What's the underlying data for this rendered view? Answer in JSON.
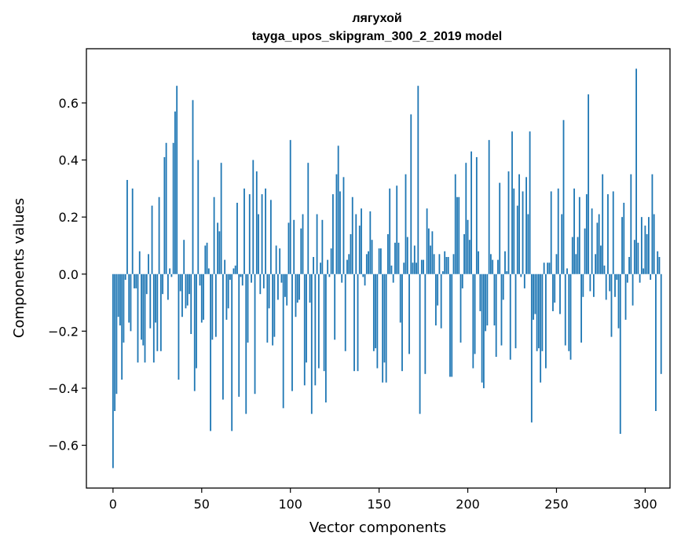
{
  "chart_data": {
    "type": "bar",
    "title": "лягухой",
    "subtitle": "tayga_upos_skipgram_300_2_2019 model",
    "xlabel": "Vector components",
    "ylabel": "Components values",
    "xlim": [
      -15,
      314
    ],
    "ylim": [
      -0.75,
      0.79
    ],
    "xticks": [
      0,
      50,
      100,
      150,
      200,
      250,
      300
    ],
    "yticks": [
      -0.6,
      -0.4,
      -0.2,
      0.0,
      0.2,
      0.4,
      0.6
    ],
    "ytick_labels": [
      "−0.6",
      "−0.4",
      "−0.2",
      "0.0",
      "0.2",
      "0.4",
      "0.6"
    ],
    "bar_color": "#1f77b4",
    "grid": false,
    "values": [
      -0.68,
      -0.48,
      -0.42,
      -0.15,
      -0.18,
      -0.37,
      -0.24,
      -0.02,
      0.33,
      -0.17,
      -0.2,
      0.3,
      -0.05,
      -0.05,
      -0.31,
      0.08,
      -0.23,
      -0.25,
      -0.31,
      -0.07,
      0.07,
      -0.19,
      0.24,
      -0.31,
      -0.17,
      -0.27,
      0.27,
      -0.27,
      -0.07,
      0.41,
      0.46,
      -0.09,
      0.02,
      -0.01,
      0.46,
      0.57,
      0.66,
      -0.37,
      -0.06,
      -0.15,
      0.12,
      -0.12,
      -0.11,
      -0.07,
      -0.21,
      0.61,
      -0.41,
      -0.33,
      0.4,
      -0.04,
      -0.17,
      -0.16,
      0.1,
      0.11,
      0.02,
      -0.55,
      -0.23,
      0.27,
      -0.22,
      0.18,
      0.15,
      0.39,
      -0.44,
      0.05,
      -0.16,
      -0.12,
      -0.02,
      -0.55,
      0.02,
      0.03,
      0.25,
      -0.43,
      -0.01,
      -0.04,
      0.3,
      -0.49,
      -0.24,
      0.28,
      -0.03,
      0.4,
      -0.42,
      0.36,
      0.21,
      -0.07,
      0.28,
      -0.05,
      0.3,
      -0.24,
      -0.12,
      0.26,
      -0.25,
      -0.22,
      0.1,
      -0.09,
      0.09,
      -0.03,
      -0.47,
      -0.08,
      -0.11,
      0.18,
      0.47,
      -0.41,
      0.19,
      -0.15,
      -0.1,
      -0.09,
      0.16,
      0.21,
      -0.39,
      -0.31,
      0.39,
      -0.1,
      -0.49,
      0.06,
      -0.39,
      0.21,
      -0.33,
      0.04,
      0.19,
      -0.34,
      -0.45,
      0.05,
      -0.01,
      0.09,
      0.28,
      -0.23,
      0.35,
      0.45,
      0.29,
      -0.03,
      0.34,
      -0.27,
      0.05,
      0.07,
      0.14,
      0.27,
      -0.34,
      0.21,
      -0.34,
      0.17,
      0.23,
      -0.01,
      -0.04,
      0.07,
      0.08,
      0.22,
      0.12,
      -0.27,
      -0.26,
      -0.33,
      0.09,
      0.09,
      -0.38,
      -0.31,
      -0.38,
      0.14,
      0.3,
      0.03,
      -0.03,
      0.11,
      0.31,
      0.11,
      -0.17,
      -0.34,
      0.04,
      0.35,
      0.13,
      -0.28,
      0.56,
      0.04,
      0.1,
      0.04,
      0.66,
      -0.49,
      0.05,
      0.05,
      -0.35,
      0.23,
      0.16,
      0.1,
      0.15,
      0.07,
      -0.18,
      -0.11,
      0.07,
      -0.19,
      0.01,
      0.08,
      0.06,
      0.06,
      -0.36,
      -0.36,
      0.07,
      0.35,
      0.27,
      0.27,
      -0.24,
      -0.05,
      0.14,
      0.39,
      0.19,
      0.12,
      0.43,
      -0.33,
      -0.28,
      0.41,
      0.08,
      -0.13,
      -0.38,
      -0.4,
      -0.2,
      -0.18,
      0.47,
      0.07,
      0.05,
      -0.18,
      -0.29,
      0.05,
      0.32,
      -0.25,
      -0.09,
      0.08,
      0.01,
      0.36,
      -0.3,
      0.5,
      0.3,
      -0.26,
      0.24,
      0.35,
      -0.01,
      0.29,
      -0.05,
      0.34,
      0.21,
      0.5,
      -0.52,
      -0.16,
      -0.14,
      -0.27,
      -0.26,
      -0.38,
      -0.27,
      0.04,
      -0.33,
      0.04,
      0.04,
      0.29,
      -0.13,
      -0.1,
      0.07,
      0.3,
      -0.14,
      0.21,
      0.54,
      -0.25,
      0.02,
      -0.27,
      -0.3,
      0.13,
      0.3,
      0.07,
      0.13,
      0.27,
      -0.24,
      -0.08,
      0.16,
      0.28,
      0.63,
      -0.06,
      0.23,
      -0.08,
      0.07,
      0.18,
      0.21,
      0.1,
      0.35,
      0.03,
      -0.09,
      0.28,
      -0.06,
      -0.22,
      0.29,
      -0.08,
      -0.02,
      -0.19,
      -0.56,
      0.2,
      0.25,
      -0.16,
      -0.03,
      0.06,
      0.35,
      -0.11,
      0.12,
      0.72,
      0.11,
      -0.03,
      0.2,
      0.02,
      0.17,
      0.14,
      0.2,
      -0.02,
      0.35,
      0.21,
      -0.48,
      0.08,
      0.06,
      -0.35
    ]
  }
}
